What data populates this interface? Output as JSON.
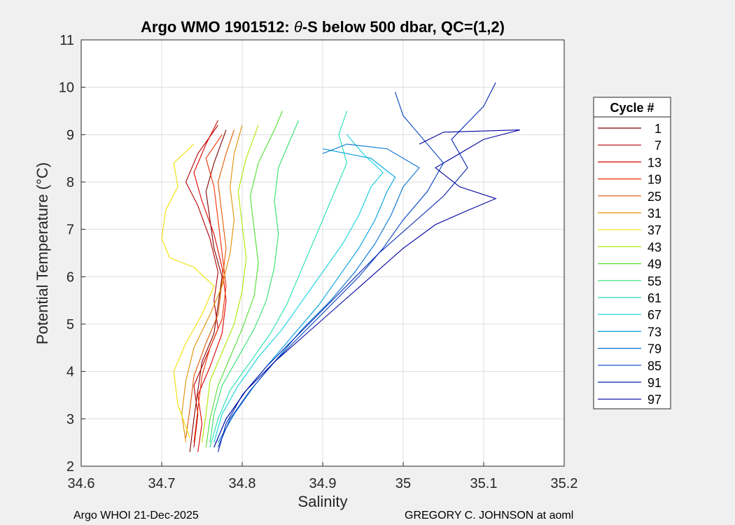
{
  "chart_data": {
    "type": "line",
    "title_prefix": "Argo WMO 1901512: ",
    "title_theta": "θ",
    "title_suffix": "-S below 500 dbar,  QC=(1,2)",
    "xlabel": "Salinity",
    "ylabel": "Potential Temperature (°C)",
    "xlim": [
      34.6,
      35.2
    ],
    "ylim": [
      2,
      11
    ],
    "xticks": [
      34.6,
      34.7,
      34.8,
      34.9,
      35.0,
      35.1,
      35.2
    ],
    "xtick_labels": [
      "34.6",
      "34.7",
      "34.8",
      "34.9",
      "35",
      "35.1",
      "35.2"
    ],
    "yticks": [
      2,
      3,
      4,
      5,
      6,
      7,
      8,
      9,
      10,
      11
    ],
    "ytick_labels": [
      "2",
      "3",
      "4",
      "5",
      "6",
      "7",
      "8",
      "9",
      "10",
      "11"
    ],
    "grid": true,
    "legend_title": "Cycle #",
    "legend_position": "outside-right",
    "legend": [
      {
        "label": "1",
        "color": "#800000"
      },
      {
        "label": "7",
        "color": "#b00000"
      },
      {
        "label": "13",
        "color": "#e00000"
      },
      {
        "label": "19",
        "color": "#ee3000"
      },
      {
        "label": "25",
        "color": "#e05a00"
      },
      {
        "label": "31",
        "color": "#e09000"
      },
      {
        "label": "37",
        "color": "#f0e000"
      },
      {
        "label": "43",
        "color": "#b0e800"
      },
      {
        "label": "49",
        "color": "#50e030"
      },
      {
        "label": "55",
        "color": "#30e070"
      },
      {
        "label": "61",
        "color": "#20e0b0"
      },
      {
        "label": "67",
        "color": "#10d0e0"
      },
      {
        "label": "73",
        "color": "#00a0e0"
      },
      {
        "label": "79",
        "color": "#0070d0"
      },
      {
        "label": "85",
        "color": "#0040c0"
      },
      {
        "label": "91",
        "color": "#0020b0"
      },
      {
        "label": "97",
        "color": "#0000a0"
      }
    ],
    "series_profiles": [
      {
        "cycle": 1,
        "points": [
          [
            34.735,
            2.3
          ],
          [
            34.74,
            3.0
          ],
          [
            34.745,
            3.6
          ],
          [
            34.75,
            4.2
          ],
          [
            34.765,
            4.8
          ],
          [
            34.77,
            5.4
          ],
          [
            34.775,
            6.0
          ],
          [
            34.765,
            6.6
          ],
          [
            34.76,
            7.2
          ],
          [
            34.755,
            7.8
          ],
          [
            34.765,
            8.4
          ],
          [
            34.78,
            9.1
          ]
        ]
      },
      {
        "cycle": 7,
        "points": [
          [
            34.74,
            2.4
          ],
          [
            34.745,
            3.1
          ],
          [
            34.74,
            3.7
          ],
          [
            34.755,
            4.3
          ],
          [
            34.77,
            4.9
          ],
          [
            34.765,
            5.5
          ],
          [
            34.77,
            6.1
          ],
          [
            34.76,
            6.8
          ],
          [
            34.745,
            7.5
          ],
          [
            34.73,
            8.0
          ],
          [
            34.745,
            8.6
          ],
          [
            34.77,
            9.2
          ]
        ]
      },
      {
        "cycle": 13,
        "points": [
          [
            34.745,
            2.3
          ],
          [
            34.75,
            2.9
          ],
          [
            34.745,
            3.5
          ],
          [
            34.76,
            4.1
          ],
          [
            34.775,
            4.8
          ],
          [
            34.78,
            5.5
          ],
          [
            34.775,
            6.2
          ],
          [
            34.765,
            6.9
          ],
          [
            34.75,
            7.6
          ],
          [
            34.74,
            8.2
          ],
          [
            34.755,
            8.8
          ],
          [
            34.77,
            9.3
          ]
        ]
      },
      {
        "cycle": 19,
        "points": [
          [
            34.74,
            2.5
          ],
          [
            34.745,
            3.2
          ],
          [
            34.75,
            3.9
          ],
          [
            34.76,
            4.5
          ],
          [
            34.775,
            5.1
          ],
          [
            34.78,
            5.8
          ],
          [
            34.775,
            6.5
          ],
          [
            34.77,
            7.2
          ],
          [
            34.765,
            7.9
          ],
          [
            34.755,
            8.5
          ],
          [
            34.775,
            9.0
          ]
        ]
      },
      {
        "cycle": 25,
        "points": [
          [
            34.73,
            2.6
          ],
          [
            34.735,
            3.2
          ],
          [
            34.74,
            3.9
          ],
          [
            34.755,
            4.6
          ],
          [
            34.77,
            5.2
          ],
          [
            34.775,
            5.9
          ],
          [
            34.78,
            6.6
          ],
          [
            34.775,
            7.3
          ],
          [
            34.77,
            8.0
          ],
          [
            34.78,
            8.6
          ],
          [
            34.79,
            9.1
          ]
        ]
      },
      {
        "cycle": 31,
        "points": [
          [
            34.73,
            2.5
          ],
          [
            34.725,
            3.1
          ],
          [
            34.73,
            3.8
          ],
          [
            34.74,
            4.5
          ],
          [
            34.76,
            5.2
          ],
          [
            34.775,
            5.8
          ],
          [
            34.785,
            6.5
          ],
          [
            34.79,
            7.2
          ],
          [
            34.785,
            7.9
          ],
          [
            34.79,
            8.6
          ],
          [
            34.8,
            9.2
          ]
        ]
      },
      {
        "cycle": 37,
        "points": [
          [
            34.735,
            2.6
          ],
          [
            34.72,
            3.3
          ],
          [
            34.715,
            4.0
          ],
          [
            34.73,
            4.6
          ],
          [
            34.75,
            5.2
          ],
          [
            34.765,
            5.8
          ],
          [
            34.74,
            6.2
          ],
          [
            34.71,
            6.4
          ],
          [
            34.7,
            6.8
          ],
          [
            34.705,
            7.4
          ],
          [
            34.72,
            7.9
          ],
          [
            34.715,
            8.4
          ],
          [
            34.74,
            8.8
          ]
        ]
      },
      {
        "cycle": 43,
        "points": [
          [
            34.75,
            2.5
          ],
          [
            34.755,
            3.1
          ],
          [
            34.76,
            3.8
          ],
          [
            34.775,
            4.4
          ],
          [
            34.79,
            5.0
          ],
          [
            34.8,
            5.7
          ],
          [
            34.805,
            6.4
          ],
          [
            34.8,
            7.1
          ],
          [
            34.795,
            7.8
          ],
          [
            34.805,
            8.5
          ],
          [
            34.82,
            9.2
          ]
        ]
      },
      {
        "cycle": 49,
        "points": [
          [
            34.755,
            2.4
          ],
          [
            34.76,
            3.0
          ],
          [
            34.77,
            3.7
          ],
          [
            34.785,
            4.3
          ],
          [
            34.8,
            4.9
          ],
          [
            34.815,
            5.6
          ],
          [
            34.82,
            6.3
          ],
          [
            34.815,
            7.0
          ],
          [
            34.81,
            7.7
          ],
          [
            34.82,
            8.4
          ],
          [
            34.84,
            9.1
          ],
          [
            34.85,
            9.5
          ]
        ]
      },
      {
        "cycle": 55,
        "points": [
          [
            34.76,
            2.5
          ],
          [
            34.765,
            3.1
          ],
          [
            34.775,
            3.7
          ],
          [
            34.795,
            4.3
          ],
          [
            34.815,
            4.9
          ],
          [
            34.83,
            5.5
          ],
          [
            34.84,
            6.2
          ],
          [
            34.845,
            6.9
          ],
          [
            34.84,
            7.6
          ],
          [
            34.845,
            8.3
          ],
          [
            34.86,
            8.9
          ],
          [
            34.87,
            9.3
          ]
        ]
      },
      {
        "cycle": 61,
        "points": [
          [
            34.76,
            2.4
          ],
          [
            34.77,
            3.0
          ],
          [
            34.785,
            3.6
          ],
          [
            34.81,
            4.2
          ],
          [
            34.835,
            4.8
          ],
          [
            34.855,
            5.4
          ],
          [
            34.87,
            6.0
          ],
          [
            34.885,
            6.6
          ],
          [
            34.9,
            7.2
          ],
          [
            34.915,
            7.8
          ],
          [
            34.93,
            8.4
          ],
          [
            34.92,
            9.0
          ],
          [
            34.93,
            9.5
          ]
        ]
      },
      {
        "cycle": 67,
        "points": [
          [
            34.765,
            2.5
          ],
          [
            34.775,
            3.1
          ],
          [
            34.795,
            3.7
          ],
          [
            34.82,
            4.3
          ],
          [
            34.85,
            4.9
          ],
          [
            34.875,
            5.5
          ],
          [
            34.9,
            6.1
          ],
          [
            34.925,
            6.7
          ],
          [
            34.945,
            7.3
          ],
          [
            34.96,
            7.9
          ],
          [
            34.975,
            8.2
          ],
          [
            34.95,
            8.6
          ],
          [
            34.93,
            9.0
          ]
        ]
      },
      {
        "cycle": 73,
        "points": [
          [
            34.765,
            2.4
          ],
          [
            34.78,
            3.0
          ],
          [
            34.805,
            3.6
          ],
          [
            34.835,
            4.2
          ],
          [
            34.865,
            4.8
          ],
          [
            34.895,
            5.4
          ],
          [
            34.92,
            6.0
          ],
          [
            34.945,
            6.6
          ],
          [
            34.965,
            7.2
          ],
          [
            34.98,
            7.8
          ],
          [
            34.99,
            8.1
          ],
          [
            34.96,
            8.5
          ],
          [
            34.9,
            8.7
          ]
        ]
      },
      {
        "cycle": 79,
        "points": [
          [
            34.77,
            2.5
          ],
          [
            34.79,
            3.1
          ],
          [
            34.815,
            3.7
          ],
          [
            34.845,
            4.3
          ],
          [
            34.875,
            4.9
          ],
          [
            34.91,
            5.5
          ],
          [
            34.94,
            6.1
          ],
          [
            34.965,
            6.7
          ],
          [
            34.985,
            7.3
          ],
          [
            35.0,
            7.9
          ],
          [
            35.02,
            8.3
          ],
          [
            34.98,
            8.7
          ],
          [
            34.93,
            8.8
          ],
          [
            34.9,
            8.6
          ]
        ]
      },
      {
        "cycle": 85,
        "points": [
          [
            34.77,
            2.4
          ],
          [
            34.785,
            3.0
          ],
          [
            34.81,
            3.6
          ],
          [
            34.84,
            4.2
          ],
          [
            34.875,
            4.8
          ],
          [
            34.91,
            5.4
          ],
          [
            34.945,
            6.0
          ],
          [
            34.975,
            6.6
          ],
          [
            35.0,
            7.2
          ],
          [
            35.03,
            7.8
          ],
          [
            35.05,
            8.4
          ],
          [
            35.02,
            9.0
          ],
          [
            35.0,
            9.4
          ],
          [
            34.99,
            9.9
          ]
        ]
      },
      {
        "cycle": 91,
        "points": [
          [
            34.77,
            2.3
          ],
          [
            34.78,
            2.9
          ],
          [
            34.8,
            3.5
          ],
          [
            34.83,
            4.1
          ],
          [
            34.865,
            4.7
          ],
          [
            34.9,
            5.3
          ],
          [
            34.935,
            5.9
          ],
          [
            34.97,
            6.5
          ],
          [
            35.01,
            7.1
          ],
          [
            35.05,
            7.7
          ],
          [
            35.08,
            8.3
          ],
          [
            35.06,
            8.9
          ],
          [
            35.1,
            9.6
          ],
          [
            35.115,
            10.1
          ]
        ]
      },
      {
        "cycle": 97,
        "points": [
          [
            34.765,
            2.4
          ],
          [
            34.78,
            3.0
          ],
          [
            34.805,
            3.6
          ],
          [
            34.84,
            4.2
          ],
          [
            34.88,
            4.8
          ],
          [
            34.92,
            5.4
          ],
          [
            34.96,
            6.0
          ],
          [
            35.0,
            6.6
          ],
          [
            35.04,
            7.1
          ],
          [
            35.08,
            7.4
          ],
          [
            35.115,
            7.65
          ],
          [
            35.07,
            7.9
          ],
          [
            35.04,
            8.3
          ],
          [
            35.1,
            8.9
          ],
          [
            35.145,
            9.1
          ],
          [
            35.05,
            9.05
          ],
          [
            35.02,
            8.8
          ]
        ]
      }
    ]
  },
  "footer": {
    "left": "Argo WHOI 21-Dec-2025",
    "right": "GREGORY C. JOHNSON at aoml"
  }
}
